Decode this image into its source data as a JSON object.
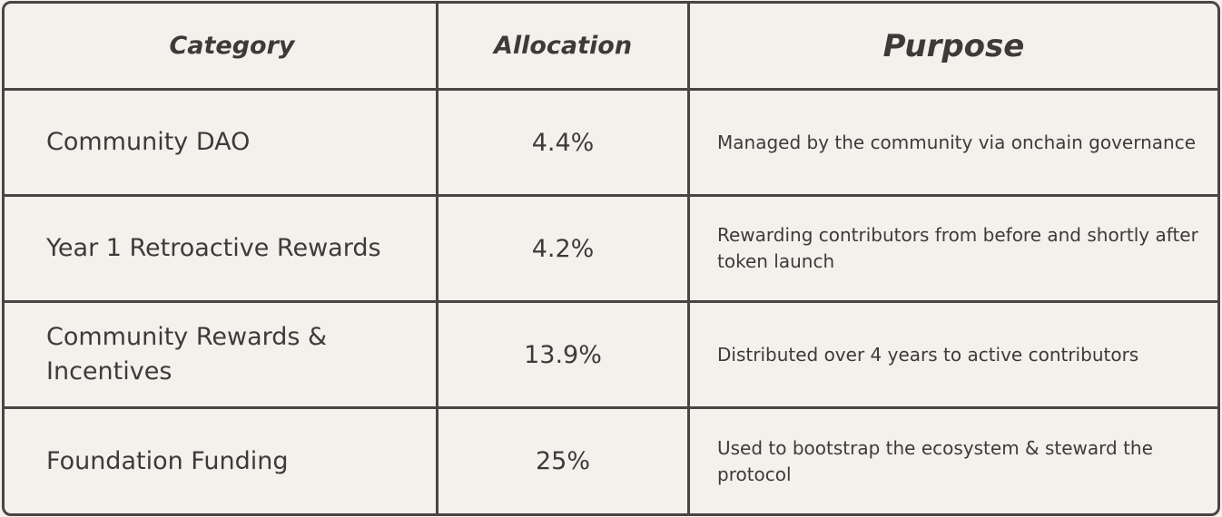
{
  "table": {
    "headers": [
      "Category",
      "Allocation",
      "Purpose"
    ],
    "rows": [
      [
        "Community DAO",
        "4.4%",
        "Managed by the community via onchain governance"
      ],
      [
        "Year 1 Retroactive Rewards",
        "4.2%",
        "Rewarding contributors from before and shortly after token launch"
      ],
      [
        "Community Rewards & Incentives",
        "13.9%",
        "Distributed over 4 years to active contributors"
      ],
      [
        "Foundation Funding",
        "25%",
        "Used to bootstrap the ecosystem & steward the protocol"
      ]
    ]
  }
}
